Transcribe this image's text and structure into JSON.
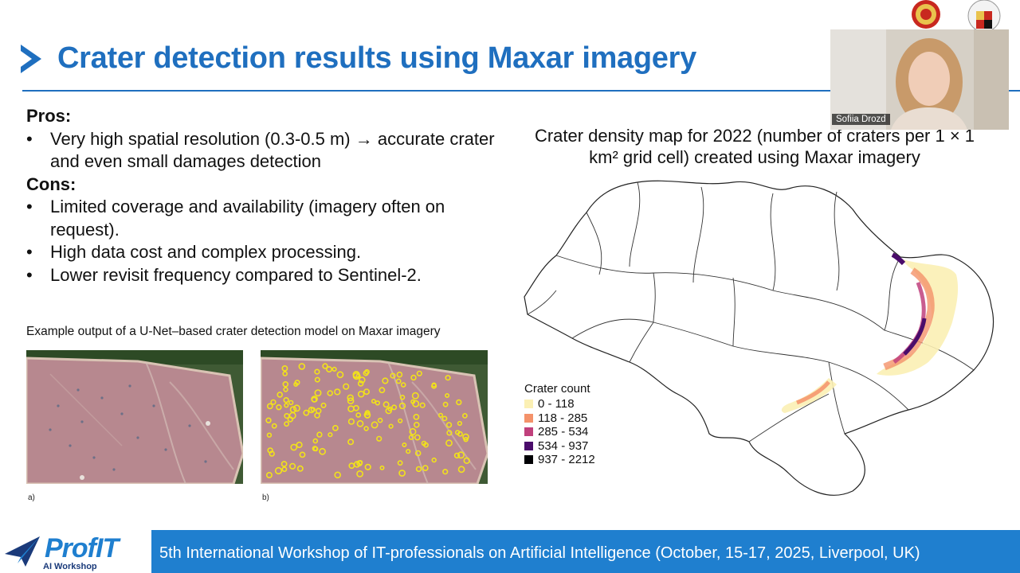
{
  "slide": {
    "title": "Crater detection results using Maxar imagery",
    "pros_heading": "Pros:",
    "pros": [
      "Very high spatial resolution (0.3-0.5 m) → accurate crater and even small damages detection"
    ],
    "cons_heading": "Cons:",
    "cons": [
      "Limited coverage and availability (imagery often on request).",
      "High data cost and complex processing.",
      "Lower revisit frequency compared to Sentinel-2."
    ],
    "example_caption": "Example output of a U-Net–based crater detection model on Maxar imagery",
    "panel_a_label": "a)",
    "panel_b_label": "b)",
    "map_title": "Crater density map for 2022 (number of craters per 1 × 1 km² grid cell) created using Maxar imagery",
    "legend": {
      "title": "Crater count",
      "items": [
        {
          "label": "0 - 118",
          "color": "#fbf0b4"
        },
        {
          "label": "118 - 285",
          "color": "#f4926a"
        },
        {
          "label": "285 - 534",
          "color": "#c0407c"
        },
        {
          "label": "534 - 937",
          "color": "#4a0c6b"
        },
        {
          "label": "937 - 2212",
          "color": "#000004"
        }
      ]
    }
  },
  "webcam": {
    "participant_name": "Sofiia Drozd"
  },
  "footer": {
    "brand_word": "ProfIT",
    "brand_sub": "AI Workshop",
    "text": "5th International Workshop of IT-professionals on Artificial Intelligence (October, 15-17, 2025, Liverpool, UK)"
  },
  "colors": {
    "accent": "#1f6fbf",
    "footer_bg": "#1f7fcf",
    "detection_marker": "#f2e21a"
  }
}
